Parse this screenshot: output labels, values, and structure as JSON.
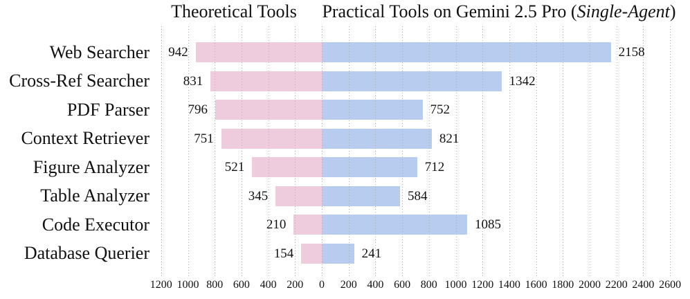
{
  "chart_data": {
    "type": "bar",
    "variant": "diverging-horizontal",
    "titles": {
      "left": "Theoretical Tools",
      "right_prefix": "Practical Tools on Gemini 2.5 Pro (",
      "right_italic": "Single-Agent",
      "right_suffix": ")"
    },
    "categories": [
      "Web Searcher",
      "Cross-Ref Searcher",
      "PDF Parser",
      "Context Retriever",
      "Figure Analyzer",
      "Table Analyzer",
      "Code Executor",
      "Database Querier"
    ],
    "series": [
      {
        "name": "Theoretical Tools",
        "side": "left",
        "color": "#eecbdd",
        "values": [
          942,
          831,
          796,
          751,
          521,
          345,
          210,
          154
        ]
      },
      {
        "name": "Practical Tools on Gemini 2.5 Pro (Single-Agent)",
        "side": "right",
        "color": "#b8ccef",
        "values": [
          2158,
          1342,
          752,
          821,
          712,
          584,
          1085,
          241
        ]
      }
    ],
    "x_axis": {
      "min": -1200,
      "max": 2600,
      "step": 200,
      "tick_labels": [
        "1200",
        "1000",
        "800",
        "600",
        "400",
        "200",
        "0",
        "200",
        "400",
        "600",
        "800",
        "1000",
        "1200",
        "1400",
        "1600",
        "1800",
        "2000",
        "2200",
        "2400",
        "2600"
      ]
    },
    "grid": {
      "show": true,
      "style": "dotted",
      "color": "#adadad"
    },
    "legend_position": "top",
    "background": "#ffffff"
  }
}
